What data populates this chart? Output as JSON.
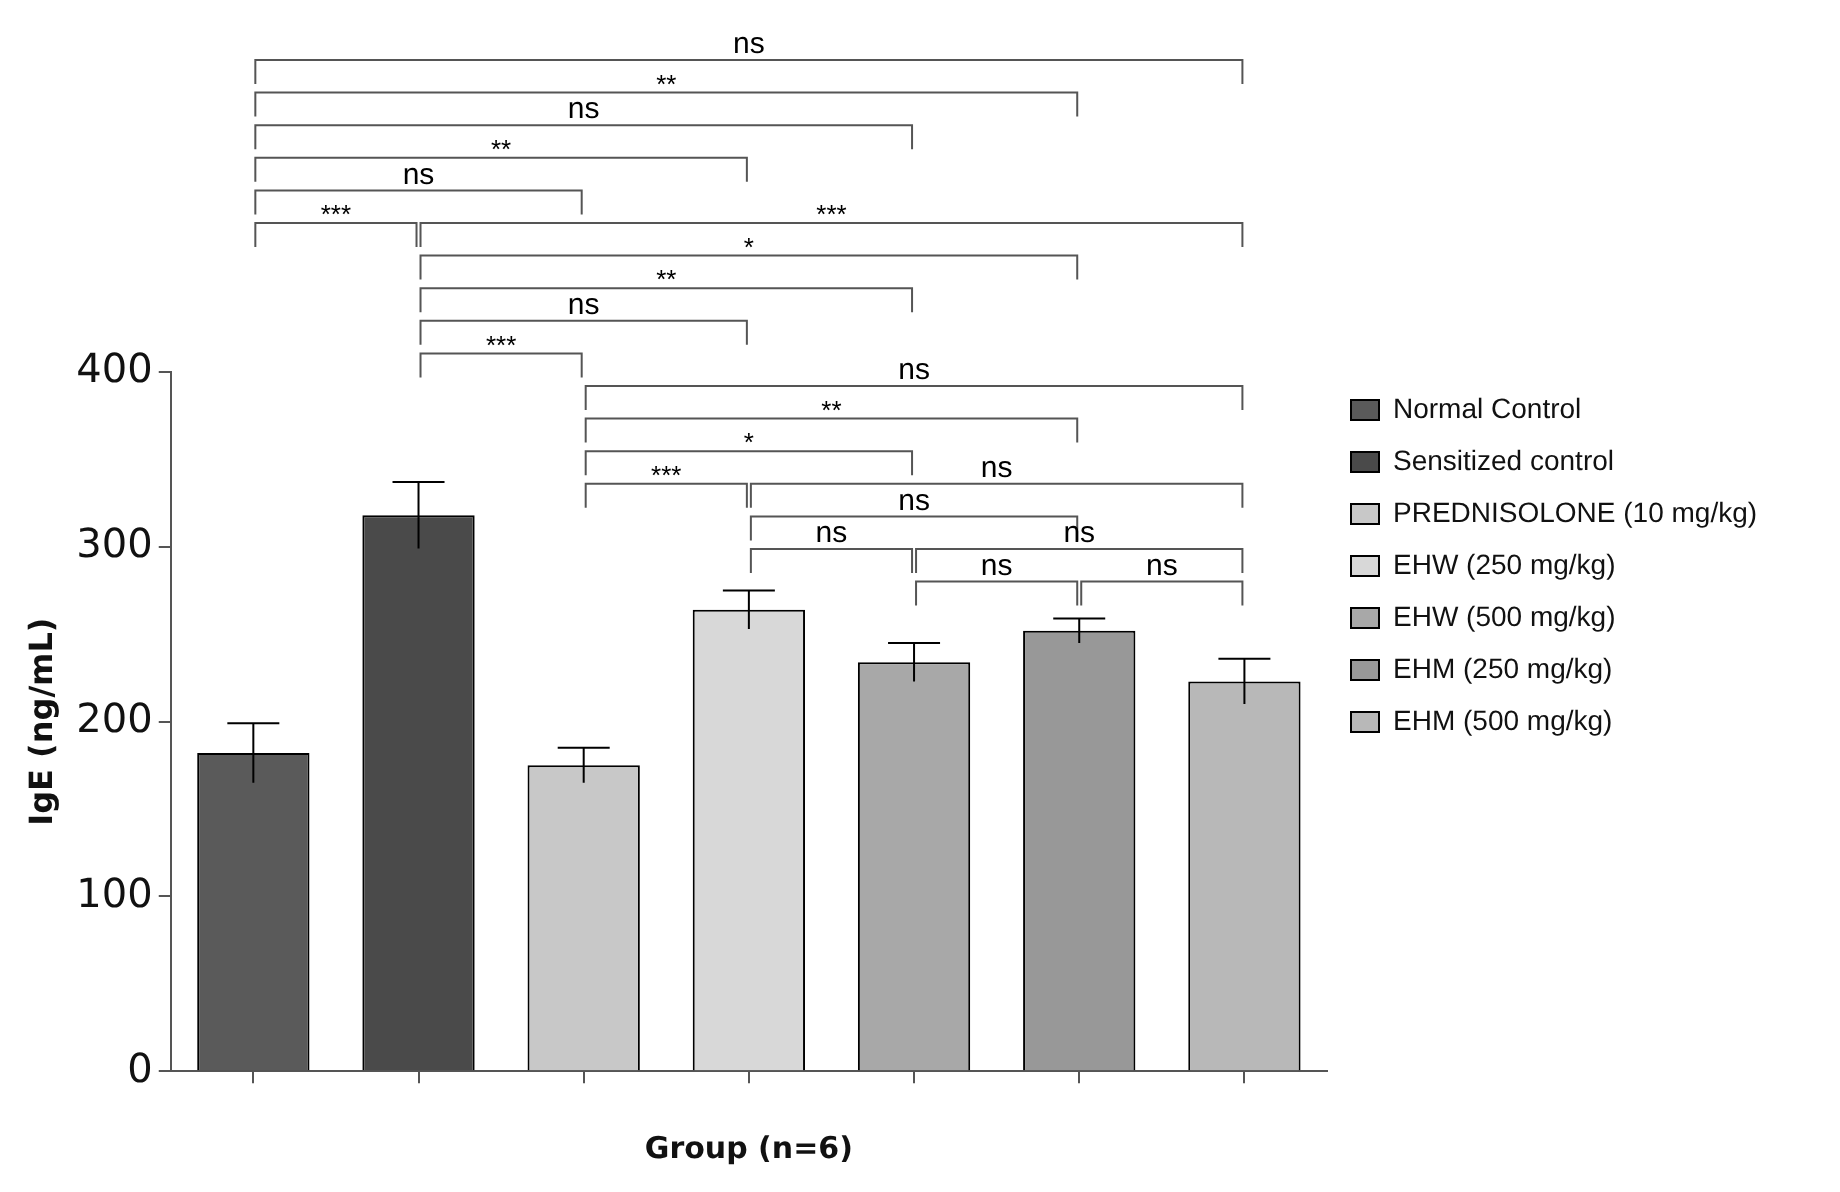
{
  "chart_data": {
    "type": "bar",
    "xlabel": "Group (n=6)",
    "ylabel": "IgE (ng/mL)",
    "categories": [
      null,
      null,
      null,
      null,
      null,
      null,
      null
    ],
    "series": [
      {
        "name": "Normal Control",
        "color": "#5a5a5a",
        "values": [
          182,
          null,
          null,
          null,
          null,
          null,
          null
        ],
        "errors": [
          17,
          null,
          null,
          null,
          null,
          null,
          null
        ]
      },
      {
        "name": "Sensitized control",
        "color": "#4a4a4a",
        "values": [
          null,
          318,
          null,
          null,
          null,
          null,
          null
        ],
        "errors": [
          null,
          19,
          null,
          null,
          null,
          null,
          null
        ]
      },
      {
        "name": "PREDNISOLONE (10 mg/kg)",
        "color": "#c8c8c8",
        "values": [
          null,
          null,
          175,
          null,
          null,
          null,
          null
        ],
        "errors": [
          null,
          null,
          10,
          null,
          null,
          null,
          null
        ]
      },
      {
        "name": "EHW (250 mg/kg)",
        "color": "#d8d8d8",
        "values": [
          null,
          null,
          null,
          264,
          null,
          null,
          null
        ],
        "errors": [
          null,
          null,
          null,
          11,
          null,
          null,
          null
        ]
      },
      {
        "name": "EHW (500 mg/kg)",
        "color": "#a8a8a8",
        "values": [
          null,
          null,
          null,
          null,
          234,
          null,
          null
        ],
        "errors": [
          null,
          null,
          null,
          null,
          11,
          null,
          null
        ]
      },
      {
        "name": "EHM (250 mg/kg)",
        "color": "#989898",
        "values": [
          null,
          null,
          null,
          null,
          null,
          252,
          null
        ],
        "errors": [
          null,
          null,
          null,
          null,
          null,
          7,
          null
        ]
      },
      {
        "name": "EHM (500 mg/kg)",
        "color": "#b8b8b8",
        "values": [
          null,
          null,
          null,
          null,
          null,
          null,
          223
        ],
        "errors": [
          null,
          null,
          null,
          null,
          null,
          null,
          13
        ]
      }
    ],
    "ylim": [
      0,
      400
    ],
    "yticks": [
      0,
      100,
      200,
      300,
      400
    ],
    "grid": false,
    "legend": "top right",
    "annotations": [
      "ns",
      "**",
      "ns",
      "**",
      "ns",
      "***",
      "***",
      "*",
      "**",
      "ns",
      "***",
      "ns",
      "**",
      "*",
      "***",
      "ns",
      "ns",
      "ns",
      "ns",
      "ns",
      "ns"
    ]
  }
}
